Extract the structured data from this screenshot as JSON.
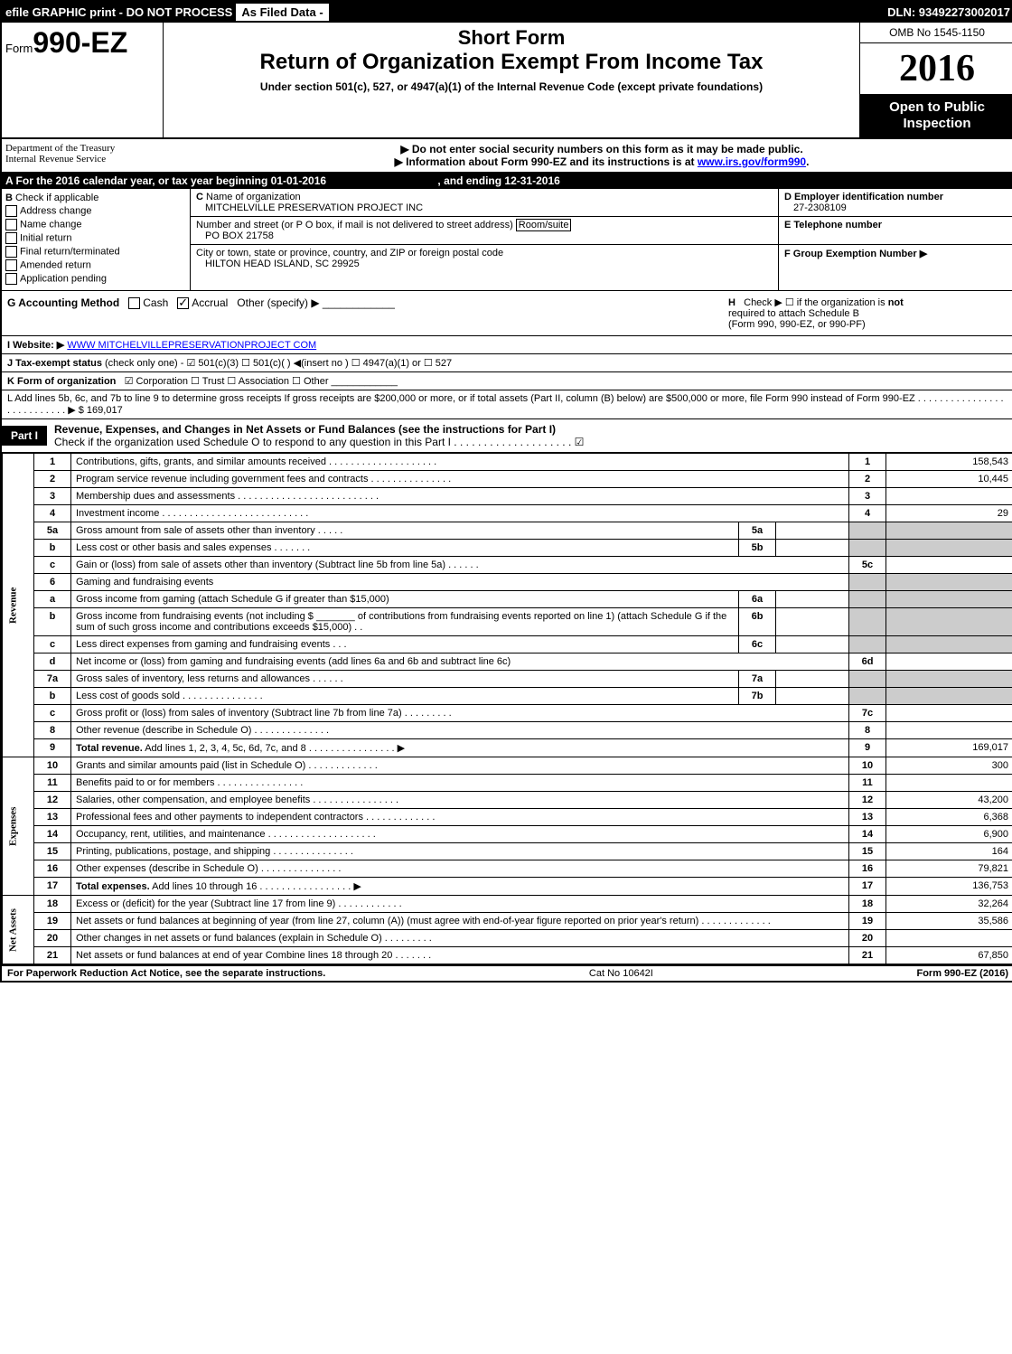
{
  "topbar": {
    "efile": "efile GRAPHIC print - DO NOT PROCESS",
    "asfiled": "As Filed Data -",
    "dln": "DLN: 93492273002017"
  },
  "header": {
    "form_prefix": "Form",
    "form_no": "990-EZ",
    "short": "Short Form",
    "title": "Return of Organization Exempt From Income Tax",
    "under": "Under section 501(c), 527, or 4947(a)(1) of the Internal Revenue Code (except private foundations)",
    "omb": "OMB No 1545-1150",
    "year": "2016",
    "open": "Open to Public Inspection",
    "dept1": "Department of the Treasury",
    "dept2": "Internal Revenue Service",
    "note1": "▶ Do not enter social security numbers on this form as it may be made public.",
    "note2": "▶ Information about Form 990-EZ and its instructions is at ",
    "note2link": "www.irs.gov/form990",
    "note2end": "."
  },
  "A": {
    "text": "A  For the 2016 calendar year, or tax year beginning 01-01-2016",
    "end": ", and ending 12-31-2016"
  },
  "B": {
    "label": "B",
    "title": "Check if applicable",
    "items": [
      "Address change",
      "Name change",
      "Initial return",
      "Final return/terminated",
      "Amended return",
      "Application pending"
    ]
  },
  "C": {
    "label": "C",
    "name_label": "Name of organization",
    "name": "MITCHELVILLE PRESERVATION PROJECT INC",
    "addr_label": "Number and street (or P O box, if mail is not delivered to street address)",
    "room": "Room/suite",
    "addr": "PO BOX 21758",
    "city_label": "City or town, state or province, country, and ZIP or foreign postal code",
    "city": "HILTON HEAD ISLAND, SC  29925"
  },
  "D": {
    "label": "D Employer identification number",
    "val": "27-2308109"
  },
  "E": {
    "label": "E Telephone number",
    "val": ""
  },
  "F": {
    "label": "F Group Exemption Number  ▶",
    "val": ""
  },
  "G": {
    "label": "G Accounting Method",
    "cash": "Cash",
    "accrual": "Accrual",
    "other": "Other (specify) ▶"
  },
  "H": {
    "label": "H",
    "text": "Check ▶ ☐ if the organization is ",
    "not": "not",
    "text2": "required to attach Schedule B",
    "text3": "(Form 990, 990-EZ, or 990-PF)"
  },
  "I": {
    "label": "I Website: ▶",
    "val": "WWW MITCHELVILLEPRESERVATIONPROJECT COM"
  },
  "J": {
    "label": "J Tax-exempt status",
    "text": "(check only one) - ☑ 501(c)(3) ☐ 501(c)( ) ◀(insert no ) ☐ 4947(a)(1) or ☐ 527"
  },
  "K": {
    "label": "K Form of organization",
    "text": "☑ Corporation  ☐ Trust  ☐ Association  ☐ Other"
  },
  "L": {
    "text": "L Add lines 5b, 6c, and 7b to line 9 to determine gross receipts  If gross receipts are $200,000 or more, or if total assets (Part II, column (B) below) are $500,000 or more, file Form 990 instead of Form 990-EZ . . . . . . . . . . . . . . . . . . . . . . . . . . . ▶ $ 169,017"
  },
  "part1": {
    "label": "Part I",
    "title": "Revenue, Expenses, and Changes in Net Assets or Fund Balances (see the instructions for Part I)",
    "sub": "Check if the organization used Schedule O to respond to any question in this Part I . . . . . . . . . . . . . . . . . . . . ☑"
  },
  "sections": {
    "revenue": "Revenue",
    "expenses": "Expenses",
    "netassets": "Net Assets"
  },
  "lines": [
    {
      "n": "1",
      "d": "Contributions, gifts, grants, and similar amounts received . . . . . . . . . . . . . . . . . . . .",
      "c": "1",
      "v": "158,543"
    },
    {
      "n": "2",
      "d": "Program service revenue including government fees and contracts . . . . . . . . . . . . . . .",
      "c": "2",
      "v": "10,445"
    },
    {
      "n": "3",
      "d": "Membership dues and assessments . . . . . . . . . . . . . . . . . . . . . . . . . .",
      "c": "3",
      "v": ""
    },
    {
      "n": "4",
      "d": "Investment income . . . . . . . . . . . . . . . . . . . . . . . . . . .",
      "c": "4",
      "v": "29"
    },
    {
      "n": "5a",
      "d": "Gross amount from sale of assets other than inventory . . . . .",
      "mini": "5a",
      "miniv": "",
      "shade": true
    },
    {
      "n": "b",
      "d": "Less  cost or other basis and sales expenses . . . . . . .",
      "mini": "5b",
      "miniv": "",
      "shade": true
    },
    {
      "n": "c",
      "d": "Gain or (loss) from sale of assets other than inventory (Subtract line 5b from line 5a) . . . . . .",
      "c": "5c",
      "v": ""
    },
    {
      "n": "6",
      "d": "Gaming and fundraising events",
      "shade": true
    },
    {
      "n": "a",
      "d": "Gross income from gaming (attach Schedule G if greater than $15,000)",
      "mini": "6a",
      "miniv": "",
      "shade": true
    },
    {
      "n": "b",
      "d": "Gross income from fundraising events (not including $ _______ of contributions from fundraising events reported on line 1) (attach Schedule G if the sum of such gross income and contributions exceeds $15,000)   . .",
      "mini": "6b",
      "miniv": "",
      "shade": true
    },
    {
      "n": "c",
      "d": "Less  direct expenses from gaming and fundraising events    . . .",
      "mini": "6c",
      "miniv": "",
      "shade": true
    },
    {
      "n": "d",
      "d": "Net income or (loss) from gaming and fundraising events (add lines 6a and 6b and subtract line 6c)",
      "c": "6d",
      "v": ""
    },
    {
      "n": "7a",
      "d": "Gross sales of inventory, less returns and allowances . . . . . .",
      "mini": "7a",
      "miniv": "",
      "shade": true
    },
    {
      "n": "b",
      "d": "Less  cost of goods sold        . . . . . . . . . . . . . . .",
      "mini": "7b",
      "miniv": "",
      "shade": true
    },
    {
      "n": "c",
      "d": "Gross profit or (loss) from sales of inventory (Subtract line 7b from line 7a) . . . . . . . . .",
      "c": "7c",
      "v": ""
    },
    {
      "n": "8",
      "d": "Other revenue (describe in Schedule O)             . . . . . . . . . . . . . .",
      "c": "8",
      "v": ""
    },
    {
      "n": "9",
      "d": "<b>Total revenue.</b> Add lines 1, 2, 3, 4, 5c, 6d, 7c, and 8 . . . . . . . . . . . . . . . .  ▶",
      "c": "9",
      "v": "169,017"
    },
    {
      "n": "10",
      "d": "Grants and similar amounts paid (list in Schedule O)        . . . . . . . . . . . . .",
      "c": "10",
      "v": "300"
    },
    {
      "n": "11",
      "d": "Benefits paid to or for members             . . . . . . . . . . . . . . . .",
      "c": "11",
      "v": ""
    },
    {
      "n": "12",
      "d": "Salaries, other compensation, and employee benefits . . . . . . . . . . . . . . . .",
      "c": "12",
      "v": "43,200"
    },
    {
      "n": "13",
      "d": "Professional fees and other payments to independent contractors . . . . . . . . . . . . .",
      "c": "13",
      "v": "6,368"
    },
    {
      "n": "14",
      "d": "Occupancy, rent, utilities, and maintenance . . . . . . . . . . . . . . . . . . . .",
      "c": "14",
      "v": "6,900"
    },
    {
      "n": "15",
      "d": "Printing, publications, postage, and shipping        . . . . . . . . . . . . . . .",
      "c": "15",
      "v": "164"
    },
    {
      "n": "16",
      "d": "Other expenses (describe in Schedule O)          . . . . . . . . . . . . . . .",
      "c": "16",
      "v": "79,821"
    },
    {
      "n": "17",
      "d": "<b>Total expenses.</b> Add lines 10 through 16      . . . . . . . . . . . . . . . . .  ▶",
      "c": "17",
      "v": "136,753"
    },
    {
      "n": "18",
      "d": "Excess or (deficit) for the year (Subtract line 17 from line 9)     . . . . . . . . . . . .",
      "c": "18",
      "v": "32,264"
    },
    {
      "n": "19",
      "d": "Net assets or fund balances at beginning of year (from line 27, column (A)) (must agree with end-of-year figure reported on prior year's return)        . . . . . . . . . . . . .",
      "c": "19",
      "v": "35,586"
    },
    {
      "n": "20",
      "d": "Other changes in net assets or fund balances (explain in Schedule O)   . . . . . . . . .",
      "c": "20",
      "v": ""
    },
    {
      "n": "21",
      "d": "Net assets or fund balances at end of year  Combine lines 18 through 20     . . . . . . .",
      "c": "21",
      "v": "67,850"
    }
  ],
  "footer": {
    "left": "For Paperwork Reduction Act Notice, see the separate instructions.",
    "mid": "Cat No 10642I",
    "right": "Form 990-EZ (2016)"
  }
}
